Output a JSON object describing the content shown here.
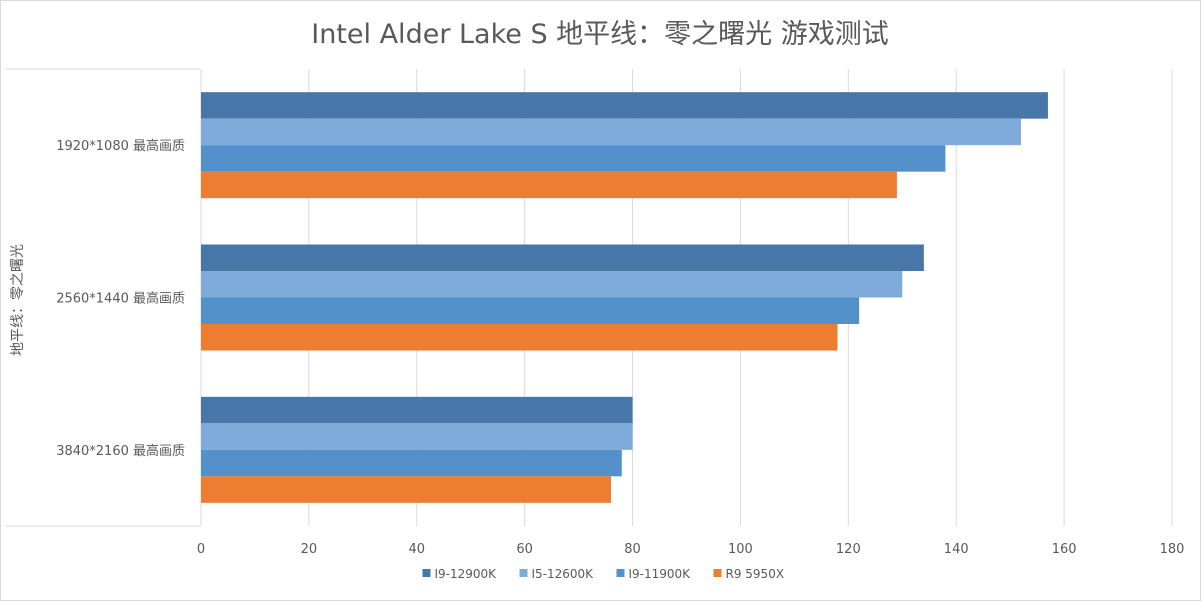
{
  "chart_data": {
    "type": "bar",
    "orientation": "horizontal",
    "title": "Intel Alder Lake S 地平线：零之曙光 游戏测试",
    "ylabel": "地平线：零之曙光",
    "xlabel": "",
    "categories": [
      "1920*1080 最高画质",
      "2560*1440 最高画质",
      "3840*2160 最高画质"
    ],
    "series": [
      {
        "name": "I9-12900K",
        "color": "#4677a8",
        "values": [
          157,
          134,
          80
        ]
      },
      {
        "name": "I5-12600K",
        "color": "#7fabda",
        "values": [
          152,
          130,
          80
        ]
      },
      {
        "name": "I9-11900K",
        "color": "#5491cb",
        "values": [
          138,
          122,
          78
        ]
      },
      {
        "name": "R9 5950X",
        "color": "#ed7d31",
        "values": [
          129,
          118,
          76
        ]
      }
    ],
    "xlim": [
      0,
      180
    ],
    "xticks": [
      "0",
      "20",
      "40",
      "60",
      "80",
      "100",
      "120",
      "140",
      "160",
      "180"
    ],
    "grid": true,
    "legend_position": "bottom"
  }
}
